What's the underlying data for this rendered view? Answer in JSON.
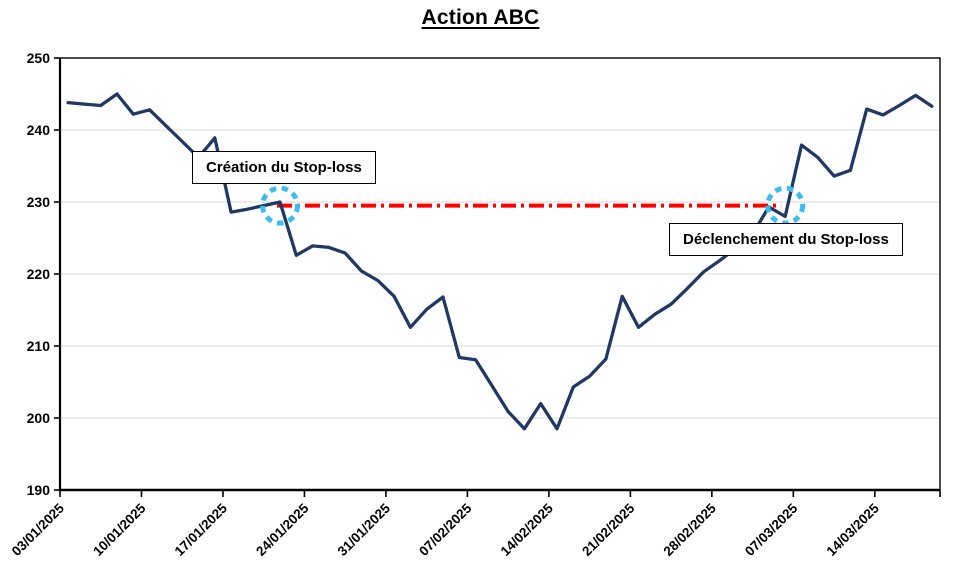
{
  "title": "Action ABC",
  "annotations": {
    "creation": "Création du Stop-loss",
    "declenchement": "Déclenchement du Stop-loss"
  },
  "chart_data": {
    "type": "line",
    "title": "Action ABC",
    "series_name": "Action ABC",
    "dates": [
      "03/01/2025",
      "06/01/2025",
      "07/01/2025",
      "08/01/2025",
      "09/01/2025",
      "10/01/2025",
      "13/01/2025",
      "14/01/2025",
      "15/01/2025",
      "16/01/2025",
      "17/01/2025",
      "20/01/2025",
      "21/01/2025",
      "22/01/2025",
      "23/01/2025",
      "24/01/2025",
      "27/01/2025",
      "28/01/2025",
      "29/01/2025",
      "30/01/2025",
      "31/01/2025",
      "03/02/2025",
      "04/02/2025",
      "05/02/2025",
      "06/02/2025",
      "07/02/2025",
      "10/02/2025",
      "11/02/2025",
      "12/02/2025",
      "13/02/2025",
      "14/02/2025",
      "17/02/2025",
      "18/02/2025",
      "19/02/2025",
      "20/02/2025",
      "21/02/2025",
      "24/02/2025",
      "25/02/2025",
      "26/02/2025",
      "27/02/2025",
      "28/02/2025",
      "03/03/2025",
      "04/03/2025",
      "05/03/2025",
      "06/03/2025",
      "07/03/2025",
      "10/03/2025",
      "11/03/2025",
      "12/03/2025",
      "13/03/2025",
      "14/03/2025",
      "17/03/2025",
      "18/03/2025",
      "19/03/2025"
    ],
    "values": [
      243.8,
      243.6,
      243.4,
      245.0,
      242.2,
      242.8,
      240.6,
      238.4,
      236.2,
      238.9,
      228.6,
      229.0,
      229.5,
      230.0,
      222.6,
      223.9,
      223.7,
      222.9,
      220.4,
      219.1,
      216.9,
      212.6,
      215.1,
      216.8,
      208.4,
      208.1,
      204.5,
      200.9,
      198.5,
      202.0,
      198.5,
      204.3,
      205.8,
      208.2,
      216.9,
      212.6,
      214.4,
      215.8,
      218.0,
      220.3,
      221.9,
      223.6,
      225.6,
      229.3,
      228.0,
      237.9,
      236.2,
      233.6,
      234.4,
      242.9,
      242.1,
      243.4,
      244.8,
      243.3
    ],
    "x_tick_labels": [
      "03/01/2025",
      "10/01/2025",
      "17/01/2025",
      "24/01/2025",
      "31/01/2025",
      "07/02/2025",
      "14/02/2025",
      "21/02/2025",
      "28/02/2025",
      "07/03/2025",
      "14/03/2025"
    ],
    "x_tick_every": 5,
    "ylim": [
      190,
      250
    ],
    "y_ticks": [
      190,
      200,
      210,
      220,
      230,
      240,
      250
    ],
    "grid": true,
    "line_color": "#1f3864",
    "grid_color": "#d9d9d9",
    "axis_color": "#000000",
    "stop_loss": {
      "level": 229.5,
      "start_date": "22/01/2025",
      "end_date": "06/03/2025",
      "line_color": "#fe0000",
      "marker_color": "#3bbdee"
    }
  }
}
